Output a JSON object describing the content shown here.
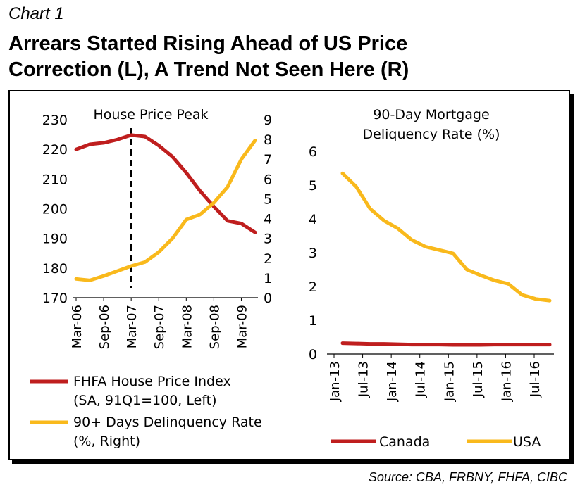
{
  "header": {
    "chart_label": "Chart 1",
    "title_line1": "Arrears Started Rising Ahead of US Price",
    "title_line2": "Correction (L), A Trend Not Seen Here (R)",
    "source": "Source: CBA, FRBNY, FHFA, CIBC"
  },
  "colors": {
    "red": "#bf1e1e",
    "yellow": "#f9b91c"
  },
  "chart_data": [
    {
      "type": "line",
      "annotation": "House Price Peak",
      "tick_labels_x": [
        "Mar-06",
        "Sep-06",
        "Mar-07",
        "Sep-07",
        "Mar-08",
        "Sep-08",
        "Mar-09"
      ],
      "x": [
        "Mar-06",
        "Jun-06",
        "Sep-06",
        "Dec-06",
        "Mar-07",
        "Jun-07",
        "Sep-07",
        "Dec-07",
        "Mar-08",
        "Jun-08",
        "Sep-08",
        "Dec-08",
        "Mar-09",
        "Jun-09"
      ],
      "ylim_left": [
        170,
        230
      ],
      "yticks_left": [
        170,
        180,
        190,
        200,
        210,
        220,
        230
      ],
      "ylim_right": [
        0,
        9
      ],
      "yticks_right": [
        0,
        1,
        2,
        3,
        4,
        5,
        6,
        7,
        8,
        9
      ],
      "series": [
        {
          "name": "FHFA House Price Index",
          "legend_line2": "(SA, 91Q1=100, Left)",
          "axis": "left",
          "color": "#bf1e1e",
          "values": [
            220,
            221.7,
            222.2,
            223.3,
            224.8,
            224.3,
            221.3,
            217.5,
            212.1,
            206,
            200.7,
            195.9,
            195,
            192
          ]
        },
        {
          "name": "90+ Days Delinquency Rate",
          "legend_line2": "(%, Right)",
          "axis": "right",
          "color": "#f9b91c",
          "values": [
            0.95,
            0.88,
            1.1,
            1.35,
            1.6,
            1.8,
            2.3,
            3,
            3.95,
            4.2,
            4.8,
            5.6,
            7,
            7.95
          ]
        }
      ],
      "annotation_x": "Mar-07"
    },
    {
      "type": "line",
      "title_line1": "90-Day Mortgage",
      "title_line2": "Deliquency Rate (%)",
      "tick_labels_x": [
        "Jan-13",
        "Jul-13",
        "Jan-14",
        "Jul-14",
        "Jan-15",
        "Jul-15",
        "Jan-16",
        "Jul-16"
      ],
      "x": [
        "Mar-13",
        "Jun-13",
        "Sep-13",
        "Dec-13",
        "Mar-14",
        "Jun-14",
        "Sep-14",
        "Dec-14",
        "Mar-15",
        "Jun-15",
        "Sep-15",
        "Dec-15",
        "Mar-16",
        "Jun-16",
        "Sep-16",
        "Dec-16"
      ],
      "ylim": [
        0,
        6
      ],
      "yticks": [
        0,
        1,
        2,
        3,
        4,
        5,
        6
      ],
      "series": [
        {
          "name": "Canada",
          "color": "#bf1e1e",
          "values": [
            0.32,
            0.31,
            0.3,
            0.3,
            0.29,
            0.28,
            0.28,
            0.28,
            0.27,
            0.27,
            0.27,
            0.28,
            0.28,
            0.28,
            0.28,
            0.28
          ]
        },
        {
          "name": "USA",
          "color": "#f9b91c",
          "values": [
            5.35,
            4.95,
            4.3,
            3.95,
            3.72,
            3.38,
            3.18,
            3.08,
            2.98,
            2.5,
            2.33,
            2.18,
            2.08,
            1.75,
            1.63,
            1.58
          ]
        }
      ]
    }
  ]
}
